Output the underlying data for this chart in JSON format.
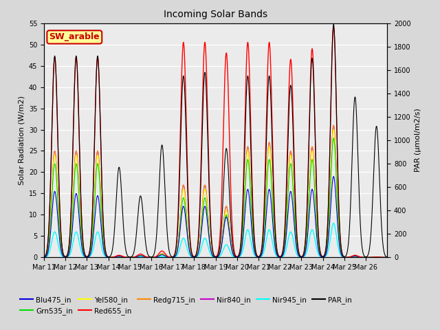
{
  "title": "Incoming Solar Bands",
  "ylabel_left": "Solar Radiation (W/m2)",
  "ylabel_right": "PAR (μmol/m2/s)",
  "annotation": "SW_arable",
  "ylim_left": [
    0,
    55
  ],
  "ylim_right": [
    0,
    2000
  ],
  "yticks_left": [
    0,
    5,
    10,
    15,
    20,
    25,
    30,
    35,
    40,
    45,
    50,
    55
  ],
  "yticks_right": [
    0,
    200,
    400,
    600,
    800,
    1000,
    1200,
    1400,
    1600,
    1800,
    2000
  ],
  "xtick_labels": [
    "Mar 11",
    "Mar 12",
    "Mar 13",
    "Mar 14",
    "Mar 15",
    "Mar 16",
    "Mar 17",
    "Mar 18",
    "Mar 19",
    "Mar 20",
    "Mar 21",
    "Mar 22",
    "Mar 23",
    "Mar 24",
    "Mar 25",
    "Mar 26"
  ],
  "series_order": [
    "Nir945_in",
    "Nir840_in",
    "Redg715_in",
    "Yel580_in",
    "Grn535_in",
    "Blu475_in",
    "Red655_in",
    "PAR_in"
  ],
  "series": {
    "Blu475_in": {
      "color": "#0000dd",
      "lw": 0.8
    },
    "Grn535_in": {
      "color": "#00dd00",
      "lw": 0.8
    },
    "Yel580_in": {
      "color": "#ffff00",
      "lw": 0.8
    },
    "Red655_in": {
      "color": "#ff0000",
      "lw": 1.0
    },
    "Redg715_in": {
      "color": "#ff8800",
      "lw": 0.8
    },
    "Nir840_in": {
      "color": "#cc00cc",
      "lw": 0.8
    },
    "Nir945_in": {
      "color": "#00ffff",
      "lw": 1.0
    },
    "PAR_in": {
      "color": "#000000",
      "lw": 0.8
    }
  },
  "legend_order": [
    "Blu475_in",
    "Grn535_in",
    "Yel580_in",
    "Red655_in",
    "Redg715_in",
    "Nir840_in",
    "Nir945_in",
    "PAR_in"
  ],
  "bg_color": "#d8d8d8",
  "plot_bg_color": "#ebebeb",
  "grid_color": "#ffffff",
  "annotation_bg": "#ffff99",
  "annotation_border": "#cc0000",
  "annotation_text_color": "#cc0000",
  "day_red": [
    47.0,
    47.0,
    47.0,
    0.5,
    0.8,
    1.5,
    50.5,
    50.5,
    48.0,
    50.5,
    50.5,
    46.5,
    49.0,
    54.0,
    0.5,
    0.1
  ],
  "day_blu": [
    15.5,
    15.0,
    14.5,
    0.3,
    0.4,
    0.6,
    12.0,
    12.0,
    9.5,
    16.0,
    16.0,
    15.5,
    16.0,
    19.0,
    0.3,
    0.05
  ],
  "day_grn": [
    22.0,
    22.0,
    22.0,
    0.3,
    0.4,
    0.7,
    14.0,
    14.0,
    10.0,
    23.0,
    23.0,
    22.0,
    23.0,
    28.0,
    0.3,
    0.05
  ],
  "day_yel": [
    24.0,
    24.0,
    24.0,
    0.3,
    0.5,
    0.8,
    16.0,
    16.0,
    11.0,
    25.0,
    26.0,
    24.0,
    25.0,
    30.0,
    0.3,
    0.05
  ],
  "day_redg": [
    25.0,
    25.0,
    25.0,
    0.3,
    0.5,
    0.9,
    17.0,
    17.0,
    12.0,
    26.0,
    27.0,
    25.0,
    26.0,
    31.0,
    0.3,
    0.05
  ],
  "day_nir840": [
    25.0,
    25.0,
    25.0,
    0.3,
    0.5,
    0.9,
    17.0,
    17.0,
    12.0,
    26.0,
    27.0,
    25.0,
    26.0,
    31.0,
    0.3,
    0.05
  ],
  "day_nir945": [
    6.0,
    6.0,
    6.0,
    0.1,
    0.1,
    0.2,
    4.5,
    4.5,
    3.0,
    6.5,
    6.5,
    6.0,
    6.5,
    8.0,
    0.1,
    0.02
  ],
  "day_par": [
    1720,
    1720,
    1720,
    770,
    525,
    960,
    1550,
    1580,
    930,
    1550,
    1550,
    1470,
    1700,
    1990,
    1370,
    1120
  ]
}
